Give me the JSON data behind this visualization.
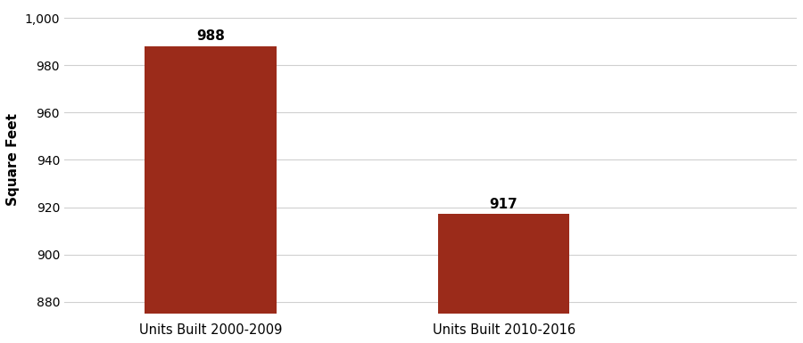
{
  "categories": [
    "Units Built 2000-2009",
    "Units Built 2010-2016"
  ],
  "values": [
    988,
    917
  ],
  "bar_color": "#9B2B1A",
  "ylabel": "Square Feet",
  "ylim": [
    875,
    1005
  ],
  "ytick_values": [
    880,
    900,
    920,
    940,
    960,
    980,
    1000
  ],
  "ytick_labels": [
    "880",
    "900",
    "920",
    "940",
    "960",
    "980",
    "1,000"
  ],
  "bar_width": 0.18,
  "x_positions": [
    0.2,
    0.6
  ],
  "xlim": [
    0,
    1.0
  ],
  "label_fontsize": 10.5,
  "tick_fontsize": 10,
  "ylabel_fontsize": 11,
  "annotation_fontweight": "bold",
  "annotation_fontsize": 11
}
